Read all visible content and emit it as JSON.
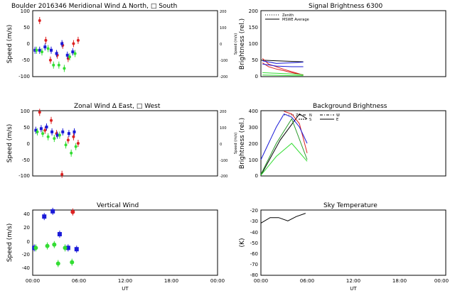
{
  "panels": {
    "meridional": {
      "title": "Boulder  2016346    Meridional Wind   Δ North, □ South",
      "ylabel": "Speed (m/s)",
      "y2label": "Speed (m/s)",
      "ylim": [
        -100,
        100
      ],
      "y2lim": [
        -200,
        200
      ],
      "yticks": [
        "100",
        "50",
        "0",
        "-50",
        "-100"
      ],
      "y2ticks": [
        "200",
        "100",
        "0",
        "-100",
        "-200"
      ]
    },
    "signal": {
      "title": "Signal Brightness      6300",
      "ylabel": "Brightness (rel.)",
      "ylim": [
        0,
        200
      ],
      "yticks": [
        "200",
        "150",
        "100",
        "50",
        "0"
      ],
      "legend": [
        "Zenith",
        "MSWE Average"
      ]
    },
    "zonal": {
      "title": "Zonal Wind    Δ East, □ West",
      "ylabel": "Speed (m/s)",
      "y2label": "Speed (m/s)",
      "ylim": [
        -100,
        100
      ],
      "y2lim": [
        -200,
        200
      ],
      "yticks": [
        "100",
        "50",
        "0",
        "-50",
        "-100"
      ],
      "y2ticks": [
        "200",
        "100",
        "0",
        "-100",
        "-200"
      ]
    },
    "background": {
      "title": "Background Brightness",
      "ylabel": "Brightness (rel.)",
      "ylim": [
        0,
        400
      ],
      "yticks": [
        "400",
        "300",
        "200",
        "100",
        "0"
      ],
      "legend": [
        "Z",
        "N",
        "S",
        "W",
        "E"
      ]
    },
    "vertical": {
      "title": "Vertical Wind",
      "ylabel": "Speed (m/s)",
      "ylim": [
        -50,
        50
      ],
      "yticks": [
        "40",
        "20",
        "0",
        "-20",
        "-40"
      ]
    },
    "sky": {
      "title": "Sky Temperature",
      "ylabel": "(K)",
      "ylim": [
        -80,
        -20
      ],
      "yticks": [
        "-20",
        "-30",
        "-40",
        "-50",
        "-60",
        "-70",
        "-80"
      ]
    }
  },
  "xaxis": {
    "ticks": [
      "00:00",
      "06:00",
      "12:00",
      "18:00",
      "00:00"
    ],
    "label": "UT"
  },
  "chart_data": [
    {
      "type": "scatter",
      "id": "meridional",
      "xlim": [
        0,
        24
      ],
      "ylim": [
        -100,
        100
      ],
      "series": [
        {
          "name": "north-red",
          "color": "#dd2222",
          "x": [
            0.9,
            1.7,
            2.3,
            3.2,
            3.9,
            4.6,
            5.3,
            5.9
          ],
          "y": [
            70,
            10,
            -50,
            -35,
            -5,
            -45,
            0,
            10
          ]
        },
        {
          "name": "south-blue",
          "color": "#1a1ad8",
          "x": [
            0.3,
            0.9,
            1.6,
            2.4,
            3.1,
            3.8,
            4.5,
            5.2
          ],
          "y": [
            -20,
            -20,
            -10,
            -20,
            -30,
            0,
            -35,
            -25
          ]
        },
        {
          "name": "north-green",
          "color": "#33dd33",
          "x": [
            0.5,
            1.2,
            2.0,
            2.7,
            3.4,
            4.1,
            4.8,
            5.5
          ],
          "y": [
            -20,
            -25,
            -15,
            -65,
            -65,
            -75,
            -40,
            -30
          ]
        }
      ]
    },
    {
      "type": "line",
      "id": "signal",
      "xlim": [
        0,
        24
      ],
      "ylim": [
        0,
        200
      ],
      "series": [
        {
          "name": "Zenith",
          "color": "#000000",
          "x": [
            0,
            5.5
          ],
          "y": [
            50,
            45
          ]
        },
        {
          "name": "red-1",
          "color": "#dd2222",
          "x": [
            0.2,
            1.0,
            2.0,
            3.0,
            4.0,
            5.5
          ],
          "y": [
            55,
            38,
            30,
            22,
            15,
            5
          ]
        },
        {
          "name": "red-2",
          "color": "#dd2222",
          "x": [
            0.2,
            1.0,
            2.0,
            3.0,
            4.0,
            5.5
          ],
          "y": [
            42,
            30,
            23,
            18,
            12,
            5
          ]
        },
        {
          "name": "blue-1",
          "color": "#1a1ad8",
          "x": [
            0.2,
            2.0,
            4.0,
            5.5
          ],
          "y": [
            48,
            40,
            42,
            44
          ]
        },
        {
          "name": "blue-2",
          "color": "#1a1ad8",
          "x": [
            0.2,
            2.0,
            4.0,
            5.5
          ],
          "y": [
            38,
            32,
            30,
            30
          ]
        },
        {
          "name": "green-1",
          "color": "#33dd33",
          "x": [
            0.2,
            2.0,
            4.0,
            5.5
          ],
          "y": [
            12,
            10,
            8,
            6
          ]
        },
        {
          "name": "green-2",
          "color": "#33dd33",
          "x": [
            0.2,
            2.0,
            4.0,
            5.5
          ],
          "y": [
            5,
            4,
            3,
            3
          ]
        }
      ]
    },
    {
      "type": "scatter",
      "id": "zonal",
      "xlim": [
        0,
        24
      ],
      "ylim": [
        -100,
        100
      ],
      "series": [
        {
          "name": "east-red",
          "color": "#dd2222",
          "x": [
            0.9,
            1.6,
            2.4,
            3.1,
            3.8,
            4.6,
            5.3,
            5.9
          ],
          "y": [
            95,
            40,
            70,
            30,
            -95,
            10,
            20,
            0
          ]
        },
        {
          "name": "west-blue",
          "color": "#1a1ad8",
          "x": [
            0.4,
            1.1,
            1.8,
            2.5,
            3.2,
            3.9,
            4.7,
            5.4
          ],
          "y": [
            40,
            45,
            50,
            35,
            25,
            35,
            30,
            35
          ]
        },
        {
          "name": "east-green",
          "color": "#33dd33",
          "x": [
            0.6,
            1.3,
            2.0,
            2.8,
            3.5,
            4.3,
            5.0,
            5.6
          ],
          "y": [
            35,
            30,
            20,
            15,
            25,
            -5,
            -30,
            -10
          ]
        }
      ]
    },
    {
      "type": "background-lines",
      "id": "background",
      "xlim": [
        0,
        24
      ],
      "ylim": [
        0,
        400
      ],
      "series": [
        {
          "name": "Z",
          "color": "#000000",
          "x": [
            0,
            2.5,
            5.0,
            6.0
          ],
          "y": [
            0,
            220,
            380,
            350
          ]
        },
        {
          "name": "N",
          "color": "#dd2222",
          "x": [
            3.0,
            4.0,
            5.0,
            6.0
          ],
          "y": [
            400,
            380,
            320,
            140
          ]
        },
        {
          "name": "S",
          "color": "#1a1ad8",
          "x": [
            0,
            1.0,
            2.0,
            3.0,
            4.0,
            5.0,
            6.0
          ],
          "y": [
            100,
            200,
            300,
            380,
            360,
            300,
            200
          ]
        },
        {
          "name": "W",
          "color": "#33dd33",
          "x": [
            0,
            2.0,
            4.0,
            6.0
          ],
          "y": [
            0,
            120,
            200,
            90
          ]
        },
        {
          "name": "E",
          "color": "#2a9a2a",
          "x": [
            0,
            2.0,
            4.0,
            6.0
          ],
          "y": [
            10,
            200,
            350,
            100
          ]
        }
      ]
    },
    {
      "type": "scatter",
      "id": "vertical",
      "xlim": [
        0,
        24
      ],
      "ylim": [
        -50,
        50
      ],
      "series": [
        {
          "name": "red",
          "color": "#dd2222",
          "x": [
            5.2
          ],
          "y": [
            47
          ]
        },
        {
          "name": "blue",
          "color": "#1a1ad8",
          "x": [
            0.2,
            1.5,
            2.6,
            3.5,
            4.6,
            5.7
          ],
          "y": [
            -8,
            40,
            48,
            13,
            -8,
            -10
          ]
        },
        {
          "name": "green",
          "color": "#33dd33",
          "x": [
            0.4,
            1.9,
            2.8,
            3.3,
            4.2,
            5.1
          ],
          "y": [
            -8,
            -5,
            -3,
            -32,
            -8,
            -30
          ]
        }
      ]
    },
    {
      "type": "line",
      "id": "sky",
      "xlim": [
        0,
        24
      ],
      "ylim": [
        -80,
        -20
      ],
      "series": [
        {
          "name": "sky-temperature",
          "color": "#000000",
          "x": [
            0,
            1.2,
            2.3,
            3.5,
            4.6,
            5.8
          ],
          "y": [
            -32,
            -27,
            -27,
            -30,
            -26,
            -23
          ]
        }
      ]
    }
  ]
}
